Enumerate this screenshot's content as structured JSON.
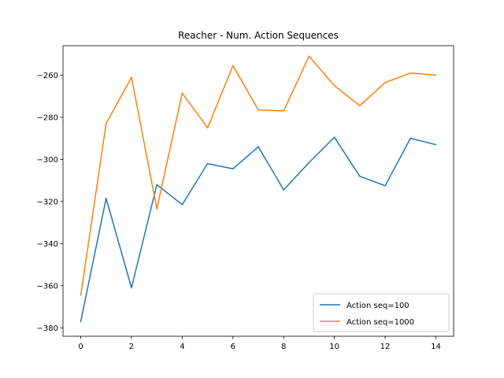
{
  "chart_data": {
    "type": "line",
    "title": "Reacher - Num. Action Sequences",
    "xlabel": "",
    "ylabel": "",
    "x": [
      0,
      1,
      2,
      3,
      4,
      5,
      6,
      7,
      8,
      9,
      10,
      11,
      12,
      13,
      14
    ],
    "xlim": [
      -0.7,
      14.7
    ],
    "ylim": [
      -384,
      -246
    ],
    "xticks": [
      0,
      2,
      4,
      6,
      8,
      10,
      12,
      14
    ],
    "yticks": [
      -380,
      -360,
      -340,
      -320,
      -300,
      -280,
      -260
    ],
    "yticks_labels": [
      "−380",
      "−360",
      "−340",
      "−320",
      "−300",
      "−280",
      "−260"
    ],
    "grid": false,
    "legend_position": "lower-right",
    "series": [
      {
        "name": "Action seq=100",
        "color": "#1f77b4",
        "values": [
          -377,
          -318.5,
          -361,
          -312,
          -321.5,
          -302,
          -304.5,
          -294,
          -314.5,
          -301.5,
          -289.5,
          -308,
          -312.5,
          -290,
          -293
        ]
      },
      {
        "name": "Action seq=1000",
        "color": "#ff7f0e",
        "values": [
          -364.5,
          -283,
          -261,
          -323.5,
          -268.5,
          -285,
          -255.5,
          -276.5,
          -277,
          -251,
          -265,
          -274.5,
          -263.5,
          -259,
          -260
        ]
      }
    ]
  }
}
